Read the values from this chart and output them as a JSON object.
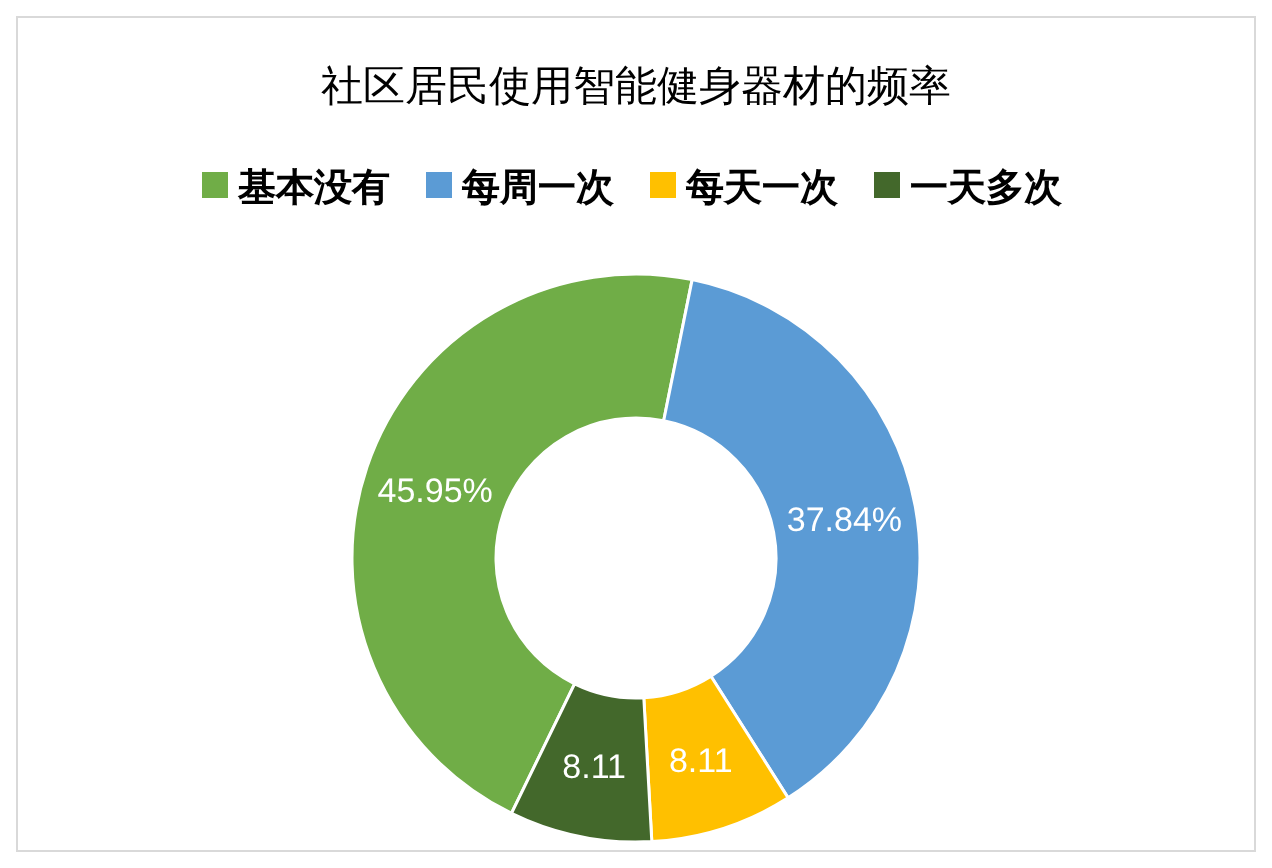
{
  "chart_data": {
    "type": "donut",
    "title": "社区居民使用智能健身器材的频率",
    "categories": [
      "基本没有",
      "每周一次",
      "每天一次",
      "一天多次"
    ],
    "values": [
      45.95,
      37.84,
      8.11,
      8.11
    ],
    "colors": [
      "#70ad47",
      "#5b9bd5",
      "#ffc000",
      "#43682b"
    ],
    "value_labels": [
      "45.95%",
      "37.84%",
      "8.11",
      "8.11"
    ],
    "legend": "top"
  }
}
